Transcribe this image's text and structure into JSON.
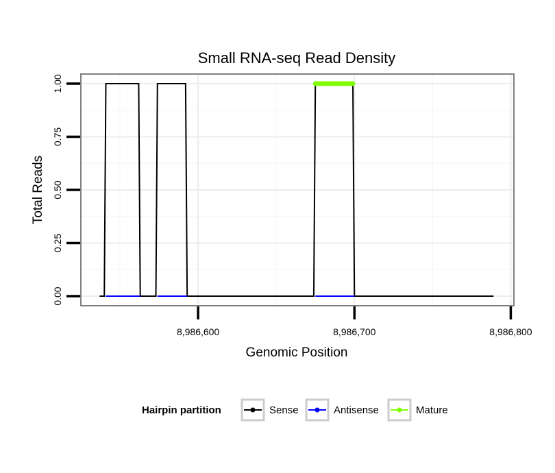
{
  "chart_data": {
    "type": "line",
    "title": "Small RNA-seq Read Density",
    "xlabel": "Genomic Position",
    "ylabel": "Total Reads",
    "xlim": [
      8986525,
      8986802
    ],
    "ylim": [
      -0.045,
      1.045
    ],
    "x_ticks": [
      8986600,
      8986700,
      8986800
    ],
    "x_tick_labels": [
      "8,986,600",
      "8,986,700",
      "8,986,800"
    ],
    "y_ticks": [
      0,
      0.25,
      0.5,
      0.75,
      1
    ],
    "y_tick_labels": [
      "0.00",
      "0.25",
      "0.50",
      "0.75",
      "1.00"
    ],
    "grid": true,
    "legend": {
      "title": "Hairpin partition",
      "position": "bottom",
      "entries": [
        {
          "name": "Sense",
          "color": "#000000"
        },
        {
          "name": "Antisense",
          "color": "#0000ff"
        },
        {
          "name": "Mature",
          "color": "#7fff00"
        }
      ]
    },
    "series": [
      {
        "name": "Sense",
        "color": "#000000",
        "x": [
          8986537,
          8986540,
          8986541,
          8986562,
          8986563,
          8986573,
          8986574,
          8986592,
          8986593,
          8986674,
          8986675,
          8986699,
          8986700,
          8986789
        ],
        "y": [
          0,
          0,
          1,
          1,
          0,
          0,
          1,
          1,
          0,
          0,
          1,
          1,
          0,
          0
        ]
      },
      {
        "name": "Antisense",
        "color": "#0000ff",
        "segments": [
          {
            "x": [
              8986541,
              8986563
            ],
            "y": [
              0,
              0
            ]
          },
          {
            "x": [
              8986574,
              8986593
            ],
            "y": [
              0,
              0
            ]
          },
          {
            "x": [
              8986675,
              8986700
            ],
            "y": [
              0,
              0
            ]
          }
        ]
      },
      {
        "name": "Mature",
        "color": "#7fff00",
        "x": [
          8986675,
          8986675.5,
          8986676,
          8986677,
          8986678,
          8986679,
          8986680,
          8986681,
          8986682,
          8986683,
          8986684,
          8986685,
          8986686,
          8986687,
          8986688,
          8986689,
          8986690,
          8986691,
          8986692,
          8986693,
          8986694,
          8986695,
          8986696,
          8986697,
          8986698,
          8986699
        ],
        "y": [
          1,
          1,
          1,
          1,
          1,
          1,
          1,
          1,
          1,
          1,
          1,
          1,
          1,
          1,
          1,
          1,
          1,
          1,
          1,
          1,
          1,
          1,
          1,
          1,
          1,
          1
        ]
      }
    ]
  }
}
